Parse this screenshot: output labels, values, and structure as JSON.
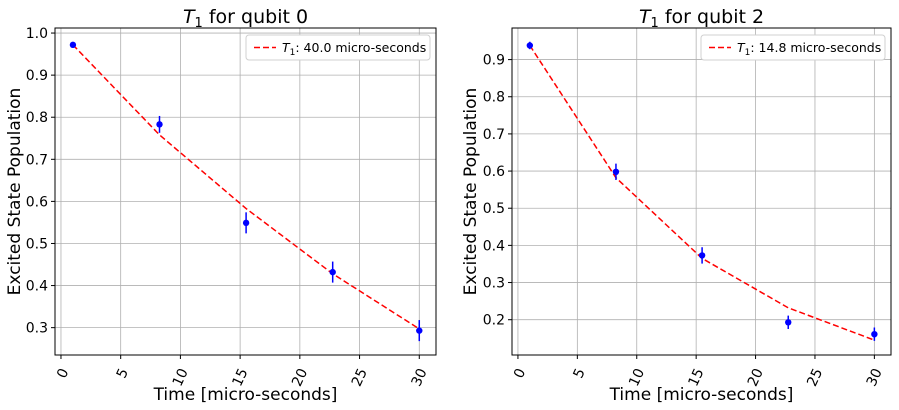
{
  "chart_data": [
    {
      "type": "scatter",
      "title_prefix": "T",
      "title_sub": "1",
      "title_rest": " for qubit 0",
      "xlabel": "Time [micro-seconds]",
      "ylabel": "Excited State Population",
      "xlim": [
        -0.5,
        31.4
      ],
      "ylim": [
        0.235,
        1.012
      ],
      "xticks": [
        0,
        5,
        10,
        15,
        20,
        25,
        30
      ],
      "xtick_labels": [
        "0",
        "5",
        "10",
        "15",
        "20",
        "25",
        "30"
      ],
      "yticks": [
        0.3,
        0.4,
        0.5,
        0.6,
        0.7,
        0.8,
        0.9,
        1.0
      ],
      "ytick_labels": [
        "0.3",
        "0.4",
        "0.5",
        "0.6",
        "0.7",
        "0.8",
        "0.9",
        "1.0"
      ],
      "grid": true,
      "legend_position": "top-right",
      "legend": {
        "prefix": "T",
        "sub": "1",
        "rest": ": 40.0 micro-seconds"
      },
      "data": {
        "x": [
          1.0,
          8.25,
          15.5,
          22.75,
          30.0
        ],
        "y": [
          0.972,
          0.783,
          0.549,
          0.432,
          0.293
        ],
        "err": [
          0.006,
          0.02,
          0.025,
          0.025,
          0.025
        ]
      },
      "fit": {
        "x": [
          1.0,
          8.25,
          15.5,
          22.75,
          30.0
        ],
        "y": [
          0.972,
          0.758,
          0.583,
          0.428,
          0.297
        ]
      },
      "colors": {
        "data": "#0000ff",
        "fit": "#ff0000"
      }
    },
    {
      "type": "scatter",
      "title_prefix": "T",
      "title_sub": "1",
      "title_rest": " for qubit 2",
      "xlabel": "Time [micro-seconds]",
      "ylabel": "Excited State Population",
      "xlim": [
        -0.5,
        31.4
      ],
      "ylim": [
        0.105,
        0.985
      ],
      "xticks": [
        0,
        5,
        10,
        15,
        20,
        25,
        30
      ],
      "xtick_labels": [
        "0",
        "5",
        "10",
        "15",
        "20",
        "25",
        "30"
      ],
      "yticks": [
        0.2,
        0.3,
        0.4,
        0.5,
        0.6,
        0.7,
        0.8,
        0.9
      ],
      "ytick_labels": [
        "0.2",
        "0.3",
        "0.4",
        "0.5",
        "0.6",
        "0.7",
        "0.8",
        "0.9"
      ],
      "grid": true,
      "legend_position": "top-right",
      "legend": {
        "prefix": "T",
        "sub": "1",
        "rest": ": 14.8 micro-seconds"
      },
      "data": {
        "x": [
          1.0,
          8.25,
          15.5,
          22.75,
          30.0
        ],
        "y": [
          0.938,
          0.598,
          0.373,
          0.193,
          0.161
        ],
        "err": [
          0.01,
          0.022,
          0.022,
          0.018,
          0.018
        ]
      },
      "fit": {
        "x": [
          1.0,
          8.25,
          15.5,
          22.75,
          30.0
        ],
        "y": [
          0.938,
          0.582,
          0.365,
          0.232,
          0.145
        ]
      },
      "colors": {
        "data": "#0000ff",
        "fit": "#ff0000"
      }
    }
  ]
}
